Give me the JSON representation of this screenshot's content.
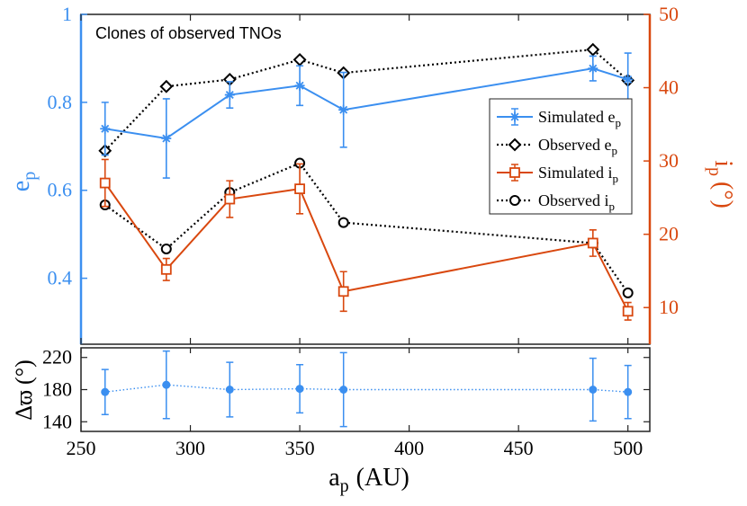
{
  "chart_data": [
    {
      "type": "line",
      "annotation": "Clones of observed TNOs",
      "xlim": [
        250,
        510
      ],
      "x_ticks": [
        "250",
        "300",
        "350",
        "400",
        "450",
        "500"
      ],
      "left_axis": {
        "label_main": "e",
        "label_sub": "p",
        "ylim": [
          0.25,
          1.0
        ],
        "ticks": [
          {
            "v": 0.4,
            "t": "0.4"
          },
          {
            "v": 0.6,
            "t": "0.6"
          },
          {
            "v": 0.8,
            "t": "0.8"
          },
          {
            "v": 1.0,
            "t": "1"
          }
        ],
        "color": "#3b8ff0"
      },
      "right_axis": {
        "label_main": "i",
        "label_sub": "p",
        "label_unit": "(°)",
        "ylim": [
          5,
          50
        ],
        "ticks": [
          {
            "v": 10,
            "t": "10"
          },
          {
            "v": 20,
            "t": "20"
          },
          {
            "v": 30,
            "t": "30"
          },
          {
            "v": 40,
            "t": "40"
          },
          {
            "v": 50,
            "t": "50"
          }
        ],
        "color": "#d9480f"
      },
      "series": [
        {
          "name_main": "Simulated e",
          "name_sub": "p",
          "axis": "left",
          "style": "solid",
          "marker": "star",
          "color": "#3b8ff0",
          "x": [
            261,
            289,
            318,
            350,
            370,
            484,
            500
          ],
          "values": [
            0.74,
            0.718,
            0.817,
            0.838,
            0.783,
            0.877,
            0.852
          ],
          "err": [
            0.06,
            0.09,
            0.03,
            0.045,
            0.085,
            0.028,
            0.06
          ]
        },
        {
          "name_main": "Observed e",
          "name_sub": "p",
          "axis": "left",
          "style": "dotted",
          "marker": "diamond",
          "color": "#000000",
          "x": [
            261,
            289,
            318,
            350,
            370,
            484,
            500
          ],
          "values": [
            0.69,
            0.836,
            0.852,
            0.897,
            0.867,
            0.92,
            0.85
          ]
        },
        {
          "name_main": "Simulated i",
          "name_sub": "p",
          "axis": "right",
          "style": "solid",
          "marker": "square",
          "color": "#d9480f",
          "x": [
            261,
            289,
            318,
            350,
            370,
            484,
            500
          ],
          "values": [
            27.0,
            15.2,
            24.8,
            26.2,
            12.2,
            18.8,
            9.5
          ],
          "err": [
            3.2,
            1.5,
            2.5,
            3.4,
            2.7,
            1.8,
            1.2
          ]
        },
        {
          "name_main": "Observed i",
          "name_sub": "p",
          "axis": "right",
          "style": "dotted",
          "marker": "circle",
          "color": "#000000",
          "x": [
            261,
            289,
            318,
            350,
            370,
            484,
            500
          ],
          "values": [
            24.0,
            18.0,
            25.7,
            29.7,
            21.6,
            18.8,
            12.0
          ]
        }
      ],
      "legend_position": "right"
    },
    {
      "type": "scatter",
      "ylabel_main": "Δϖ",
      "ylabel_unit": "(°)",
      "ylim": [
        128,
        232
      ],
      "y_ticks": [
        {
          "v": 140,
          "t": "140"
        },
        {
          "v": 180,
          "t": "180"
        },
        {
          "v": 220,
          "t": "220"
        }
      ],
      "xlabel_main": "a",
      "xlabel_sub": "p",
      "xlabel_unit": "(AU)",
      "color": "#3b8ff0",
      "series": [
        {
          "name": "Δϖ",
          "x": [
            261,
            289,
            318,
            350,
            370,
            484,
            500
          ],
          "values": [
            177,
            186,
            180,
            181,
            180,
            180,
            177
          ],
          "err": [
            28,
            42,
            34,
            30,
            46,
            39,
            33
          ]
        }
      ]
    }
  ]
}
